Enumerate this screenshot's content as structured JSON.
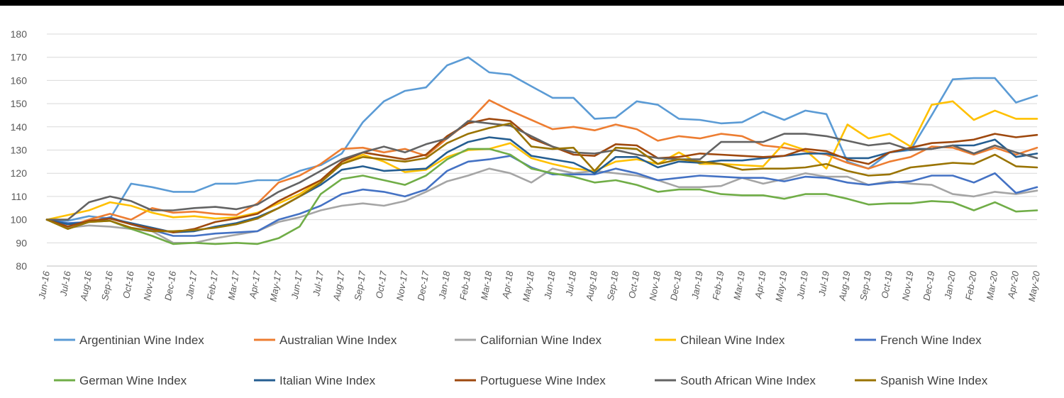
{
  "chart_data": {
    "type": "line",
    "title": "",
    "xlabel": "",
    "ylabel": "",
    "ylim": [
      80,
      180
    ],
    "yticks": [
      80,
      90,
      100,
      110,
      120,
      130,
      140,
      150,
      160,
      170,
      180
    ],
    "grid": "horizontal",
    "legend_position": "bottom",
    "categories": [
      "Jun-16",
      "Jul-16",
      "Aug-16",
      "Sep-16",
      "Oct-16",
      "Nov-16",
      "Dec-16",
      "Jan-17",
      "Feb-17",
      "Mar-17",
      "Apr-17",
      "May-17",
      "Jun-17",
      "Jul-17",
      "Aug-17",
      "Sep-17",
      "Oct-17",
      "Nov-17",
      "Dec-17",
      "Jan-18",
      "Feb-18",
      "Mar-18",
      "Apr-18",
      "May-18",
      "Jun-18",
      "Jul-18",
      "Aug-18",
      "Sep-18",
      "Oct-18",
      "Nov-18",
      "Dec-18",
      "Jan-19",
      "Feb-19",
      "Mar-19",
      "Apr-19",
      "May-19",
      "Jun-19",
      "Jul-19",
      "Aug-19",
      "Sep-19",
      "Oct-19",
      "Nov-19",
      "Dec-19",
      "Jan-20",
      "Feb-20",
      "Mar-20",
      "Apr-20",
      "May-20"
    ],
    "series": [
      {
        "name": "Argentinian Wine Index",
        "color": "#5b9bd5",
        "values": [
          100,
          99.5,
          101.5,
          100.5,
          115.5,
          114,
          112,
          112,
          115.5,
          115.5,
          117,
          117,
          121,
          123.5,
          128.5,
          142,
          151,
          155.5,
          157,
          166.5,
          170,
          163.5,
          162.5,
          157.5,
          152.5,
          152.5,
          143.5,
          144,
          151,
          149.5,
          143.5,
          143,
          141.5,
          142,
          146.5,
          143,
          147,
          145.5,
          125,
          122,
          129,
          130,
          145,
          160.5,
          161,
          161,
          150.5,
          153.5
        ]
      },
      {
        "name": "Australian Wine Index",
        "color": "#ed7d31",
        "values": [
          100,
          97,
          100,
          102.5,
          100,
          105,
          103,
          103.5,
          102.5,
          102,
          107,
          116,
          119,
          124,
          130.5,
          131,
          129,
          130.5,
          127.5,
          135,
          142,
          151.5,
          147,
          143,
          139,
          140,
          138.5,
          141,
          139,
          134,
          136,
          135,
          137,
          136,
          132,
          131,
          129.5,
          128,
          124.5,
          122,
          125,
          127,
          131.5,
          131,
          128,
          131,
          128,
          131
        ]
      },
      {
        "name": "Californian Wine Index",
        "color": "#a5a5a5",
        "values": [
          100,
          96.5,
          97.5,
          97,
          96,
          95,
          90,
          90,
          92,
          93.5,
          95,
          99,
          101,
          104,
          106,
          107,
          106,
          108,
          112,
          116.5,
          119,
          122,
          120,
          116,
          122,
          120,
          121,
          120,
          119,
          117,
          114,
          114,
          114.5,
          118,
          115.5,
          117.5,
          120,
          118.5,
          118.5,
          115,
          116.5,
          115.5,
          115,
          111,
          110,
          112,
          111,
          112.5
        ]
      },
      {
        "name": "Chilean Wine Index",
        "color": "#ffc000",
        "values": [
          100,
          102,
          104,
          107.5,
          106,
          103,
          101,
          101.5,
          100.5,
          101,
          103,
          107,
          111,
          117,
          124,
          128,
          125,
          120.5,
          121.5,
          127,
          130,
          130.5,
          133,
          126.5,
          124,
          122,
          121,
          125,
          126,
          124,
          129,
          124,
          124,
          123.5,
          123,
          133,
          130,
          122,
          141,
          135,
          137,
          131.5,
          149.5,
          151,
          143,
          147,
          143.5,
          143.5
        ]
      },
      {
        "name": "French Wine Index",
        "color": "#4472c4",
        "values": [
          100,
          98.5,
          99,
          101,
          98,
          95.5,
          93,
          93,
          94,
          94.5,
          95,
          100,
          102.5,
          106,
          111,
          113,
          112,
          110,
          113,
          121,
          125,
          126,
          127.5,
          122.5,
          119.5,
          119.5,
          119.5,
          122,
          120,
          117,
          118,
          119,
          118.5,
          118,
          118,
          116.5,
          118.5,
          118,
          116,
          115,
          116,
          116.5,
          119,
          119,
          116,
          120,
          111.5,
          114
        ]
      },
      {
        "name": "German Wine Index",
        "color": "#70ad47",
        "values": [
          100,
          96,
          99,
          99.5,
          96,
          93,
          89.5,
          90,
          89.5,
          90,
          89.5,
          92,
          97,
          111,
          117.5,
          119,
          117,
          115,
          119,
          126,
          130.5,
          130.5,
          128,
          122,
          120,
          118.5,
          116,
          117,
          115,
          112,
          113,
          113,
          111,
          110.5,
          110.5,
          109,
          111,
          111,
          109,
          106.5,
          107,
          107,
          108,
          107.5,
          104,
          107.5,
          103.5,
          104
        ]
      },
      {
        "name": "Italian Wine Index",
        "color": "#255e91",
        "values": [
          100,
          98,
          99,
          100.5,
          98.5,
          96.5,
          94.5,
          95,
          97,
          98.5,
          101,
          105,
          110,
          115,
          121.5,
          123,
          121,
          121.5,
          122,
          129,
          133.5,
          135.5,
          134.5,
          127.5,
          126,
          124.5,
          120,
          127,
          127,
          122.5,
          125,
          124.5,
          125.5,
          125.5,
          126.5,
          127.5,
          128.5,
          128.5,
          126.5,
          126.5,
          129,
          130.5,
          130.5,
          132,
          132,
          134.5,
          127,
          128.5
        ]
      },
      {
        "name": "Portuguese Wine Index",
        "color": "#9e480e",
        "values": [
          100,
          97,
          99.5,
          100.5,
          98,
          96,
          94.5,
          96,
          99,
          100.5,
          102.5,
          108,
          112.5,
          117,
          125,
          129,
          127.5,
          126,
          128,
          136,
          141.5,
          143.5,
          142.5,
          135,
          131.5,
          128,
          127.5,
          132.5,
          132,
          126.5,
          127,
          128.5,
          128,
          127.5,
          127,
          127.5,
          130.5,
          129.5,
          126,
          124,
          129,
          131,
          133,
          133.5,
          134.5,
          137,
          135.5,
          136.5
        ]
      },
      {
        "name": "South African Wine Index",
        "color": "#636363",
        "values": [
          100,
          100,
          107.5,
          110,
          108,
          104,
          104,
          105,
          105.5,
          104.5,
          106.5,
          112,
          116,
          121,
          126,
          129,
          131.5,
          129,
          132.5,
          135,
          142.5,
          141.5,
          140.5,
          136,
          131.5,
          129,
          128.5,
          130,
          128,
          126.5,
          126,
          126,
          133.5,
          133.5,
          133.5,
          137,
          137,
          136,
          134,
          132,
          133,
          130,
          130.5,
          132,
          128.5,
          132,
          129,
          126.5
        ]
      },
      {
        "name": "Spanish Wine Index",
        "color": "#997300",
        "values": [
          100,
          96,
          99,
          99.5,
          96.5,
          95,
          95,
          95.5,
          96.5,
          98,
          100.5,
          105,
          110,
          116,
          124,
          127,
          126,
          125,
          126.5,
          133,
          137,
          139.5,
          141.5,
          131.5,
          130.5,
          131,
          121,
          131,
          130.5,
          124,
          126,
          125,
          124,
          121.5,
          122,
          122,
          122.5,
          124,
          121,
          119,
          119.5,
          122.5,
          123.5,
          124.5,
          124,
          128,
          123,
          122.5
        ]
      }
    ]
  }
}
